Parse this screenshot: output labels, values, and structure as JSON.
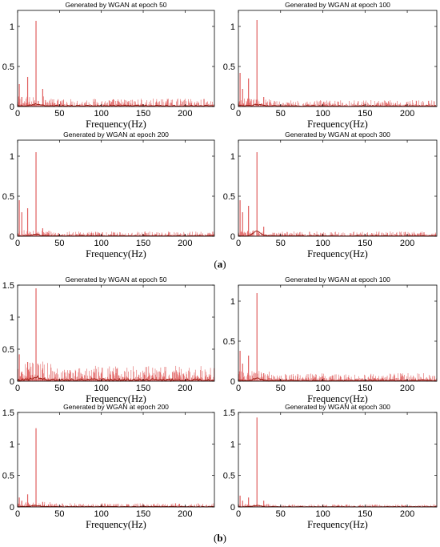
{
  "panel_labels": {
    "a_open": "(",
    "a_letter": "a",
    "a_close": ")",
    "b_open": "(",
    "b_letter": "b",
    "b_close": ")"
  },
  "colors": {
    "signal": "#e06060",
    "generated": "#9b1a10",
    "axis": "#000000"
  },
  "chart_data": [
    {
      "type": "line",
      "group": "a",
      "title": "Generated by WGAN at epoch 50",
      "xlabel": "Frequency(Hz)",
      "ylabel": "",
      "xlim": [
        0,
        235
      ],
      "ylim": [
        0,
        1.2
      ],
      "xticks": [
        0,
        50,
        100,
        150,
        200
      ],
      "yticks": [
        0,
        0.5,
        1
      ],
      "peaks": [
        {
          "x": 22,
          "y": 1.07
        },
        {
          "x": 12,
          "y": 0.37
        },
        {
          "x": 2,
          "y": 0.28
        },
        {
          "x": 5,
          "y": 0.12
        },
        {
          "x": 30,
          "y": 0.22
        }
      ],
      "noise_level": 0.05,
      "generated_peak": 0.02,
      "series": []
    },
    {
      "type": "line",
      "group": "a",
      "title": "Generated by WGAN at epoch 100",
      "xlabel": "Frequency(Hz)",
      "ylabel": "",
      "xlim": [
        0,
        235
      ],
      "ylim": [
        0,
        1.2
      ],
      "xticks": [
        0,
        50,
        100,
        150,
        200
      ],
      "yticks": [
        0,
        0.5,
        1
      ],
      "peaks": [
        {
          "x": 22,
          "y": 1.08
        },
        {
          "x": 12,
          "y": 0.35
        },
        {
          "x": 2,
          "y": 0.42
        },
        {
          "x": 5,
          "y": 0.22
        },
        {
          "x": 30,
          "y": 0.12
        }
      ],
      "noise_level": 0.04,
      "generated_peak": 0.02,
      "series": []
    },
    {
      "type": "line",
      "group": "a",
      "title": "Generated by WGAN at epoch 200",
      "xlabel": "Frequency(Hz)",
      "ylabel": "",
      "xlim": [
        0,
        235
      ],
      "ylim": [
        0,
        1.2
      ],
      "xticks": [
        0,
        50,
        100,
        150,
        200
      ],
      "yticks": [
        0,
        0.5,
        1
      ],
      "peaks": [
        {
          "x": 22,
          "y": 1.05
        },
        {
          "x": 12,
          "y": 0.35
        },
        {
          "x": 2,
          "y": 0.45
        },
        {
          "x": 5,
          "y": 0.3
        },
        {
          "x": 30,
          "y": 0.1
        }
      ],
      "noise_level": 0.03,
      "generated_peak": 0.02,
      "series": []
    },
    {
      "type": "line",
      "group": "a",
      "title": "Generated by WGAN at epoch 300",
      "xlabel": "Frequency(Hz)",
      "ylabel": "",
      "xlim": [
        0,
        235
      ],
      "ylim": [
        0,
        1.2
      ],
      "xticks": [
        0,
        50,
        100,
        150,
        200
      ],
      "yticks": [
        0,
        0.5,
        1
      ],
      "peaks": [
        {
          "x": 22,
          "y": 1.05
        },
        {
          "x": 12,
          "y": 0.38
        },
        {
          "x": 2,
          "y": 0.45
        },
        {
          "x": 5,
          "y": 0.3
        },
        {
          "x": 30,
          "y": 0.12
        }
      ],
      "noise_level": 0.03,
      "generated_peak": 0.06,
      "series": []
    },
    {
      "type": "line",
      "group": "b",
      "title": "Generated by WGAN at epoch 50",
      "xlabel": "Frequency(Hz)",
      "ylabel": "",
      "xlim": [
        0,
        235
      ],
      "ylim": [
        0,
        1.5
      ],
      "xticks": [
        0,
        50,
        100,
        150,
        200
      ],
      "yticks": [
        0,
        0.5,
        1,
        1.5
      ],
      "peaks": [
        {
          "x": 22,
          "y": 1.45
        },
        {
          "x": 12,
          "y": 0.3
        },
        {
          "x": 2,
          "y": 0.42
        },
        {
          "x": 5,
          "y": 0.15
        },
        {
          "x": 30,
          "y": 0.2
        }
      ],
      "noise_level": 0.12,
      "generated_peak": 0.05,
      "series": []
    },
    {
      "type": "line",
      "group": "b",
      "title": "Generated by WGAN at epoch 100",
      "xlabel": "Frequency(Hz)",
      "ylabel": "",
      "xlim": [
        0,
        235
      ],
      "ylim": [
        0,
        1.2
      ],
      "xticks": [
        0,
        50,
        100,
        150,
        200
      ],
      "yticks": [
        0,
        0.5,
        1
      ],
      "peaks": [
        {
          "x": 22,
          "y": 1.1
        },
        {
          "x": 12,
          "y": 0.32
        },
        {
          "x": 2,
          "y": 0.38
        },
        {
          "x": 5,
          "y": 0.22
        },
        {
          "x": 30,
          "y": 0.1
        }
      ],
      "noise_level": 0.05,
      "generated_peak": 0.03,
      "series": []
    },
    {
      "type": "line",
      "group": "b",
      "title": "Generated by WGAN at epoch 200",
      "xlabel": "Frequency(Hz)",
      "ylabel": "",
      "xlim": [
        0,
        235
      ],
      "ylim": [
        0,
        1.5
      ],
      "xticks": [
        0,
        50,
        100,
        150,
        200
      ],
      "yticks": [
        0,
        0.5,
        1,
        1.5
      ],
      "peaks": [
        {
          "x": 22,
          "y": 1.25
        },
        {
          "x": 12,
          "y": 0.2
        },
        {
          "x": 2,
          "y": 0.15
        },
        {
          "x": 5,
          "y": 0.1
        },
        {
          "x": 30,
          "y": 0.08
        }
      ],
      "noise_level": 0.03,
      "generated_peak": 0.02,
      "series": []
    },
    {
      "type": "line",
      "group": "b",
      "title": "Generated by WGAN at epoch 300",
      "xlabel": "Frequency(Hz)",
      "ylabel": "",
      "xlim": [
        0,
        235
      ],
      "ylim": [
        0,
        1.5
      ],
      "xticks": [
        0,
        50,
        100,
        150,
        200
      ],
      "yticks": [
        0,
        0.5,
        1,
        1.5
      ],
      "peaks": [
        {
          "x": 22,
          "y": 1.42
        },
        {
          "x": 12,
          "y": 0.15
        },
        {
          "x": 2,
          "y": 0.18
        },
        {
          "x": 5,
          "y": 0.1
        },
        {
          "x": 30,
          "y": 0.1
        }
      ],
      "noise_level": 0.02,
      "generated_peak": 0.02,
      "series": []
    }
  ]
}
